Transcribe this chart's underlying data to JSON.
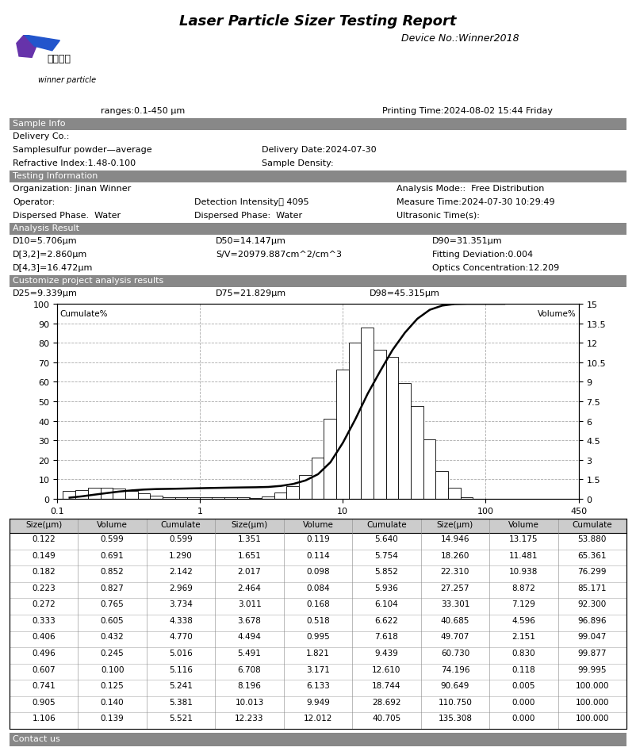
{
  "title": "Laser Particle Sizer Testing Report",
  "device": "Device No.:Winner2018",
  "ranges": "ranges:0.1-450 μm",
  "print_time": "Printing Time:2024-08-02 15:44 Friday",
  "sample_info_label": "Sample Info",
  "delivery_co": "Delivery Co.:",
  "sample": "Samplesulfur powder—average",
  "delivery_date": "Delivery Date:2024-07-30",
  "refractive": "Refractive Index:1.48-0.100",
  "sample_density": "Sample Density:",
  "testing_info_label": "Testing Information",
  "organization": "Organization: Jinan Winner",
  "operator": "Operator:",
  "dispersed1": "Dispersed Phase.  Water",
  "detection": "Detection Intensity： 4095",
  "dispersed2": "Dispersed Phase:  Water",
  "analysis_mode": "Analysis Mode::  Free Distribution",
  "measure_time": "Measure Time:2024-07-30 10:29:49",
  "ultrasonic": "Ultrasonic Time(s):",
  "analysis_result_label": "Analysis Result",
  "d10": "D10=5.706μm",
  "d50": "D50=14.147μm",
  "d90": "D90=31.351μm",
  "d32": "D[3,2]=2.860μm",
  "sv": "S/V=20979.887cm^2/cm^3",
  "fitting": "Fitting Deviation:0.004",
  "d43": "D[4,3]=16.472μm",
  "optics": "Optics Concentration:12.209",
  "customize_label": "Customize project analysis results",
  "d25": "D25=9.339μm",
  "d75": "D75=21.829μm",
  "d98": "D98=45.315μm",
  "xlabel": "Size(μm)",
  "ylabel_left": "Cumulate%",
  "ylabel_right": "Volume%",
  "bar_sizes": [
    0.122,
    0.149,
    0.182,
    0.223,
    0.272,
    0.333,
    0.406,
    0.496,
    0.607,
    0.741,
    0.905,
    1.106,
    1.351,
    1.651,
    2.017,
    2.464,
    3.011,
    3.678,
    4.494,
    5.491,
    6.708,
    8.196,
    10.013,
    12.233,
    14.946,
    18.26,
    22.31,
    27.257,
    33.301,
    40.685,
    49.707,
    60.73,
    74.196,
    90.649,
    110.75,
    135.308
  ],
  "volumes": [
    0.599,
    0.691,
    0.852,
    0.827,
    0.765,
    0.605,
    0.432,
    0.245,
    0.1,
    0.125,
    0.14,
    0.139,
    0.119,
    0.114,
    0.098,
    0.084,
    0.168,
    0.518,
    0.995,
    1.821,
    3.171,
    6.133,
    9.949,
    12.012,
    13.175,
    11.481,
    10.938,
    8.872,
    7.129,
    4.596,
    2.151,
    0.83,
    0.118,
    0.005,
    0.0,
    0.0
  ],
  "cumulates": [
    0.599,
    1.29,
    2.142,
    2.969,
    3.734,
    4.338,
    4.77,
    5.016,
    5.116,
    5.241,
    5.381,
    5.521,
    5.64,
    5.754,
    5.852,
    5.936,
    6.104,
    6.622,
    7.618,
    9.439,
    12.61,
    18.744,
    28.692,
    40.705,
    53.88,
    65.361,
    76.299,
    85.171,
    92.3,
    96.896,
    99.047,
    99.877,
    99.995,
    100.0,
    100.0,
    100.0
  ],
  "table_headers": [
    "Size(μm)",
    "Volume",
    "Cumulate",
    "Size(μm)",
    "Volume",
    "Cumulate",
    "Size(μm)",
    "Volume",
    "Cumulate"
  ],
  "table_col1": [
    [
      "0.122",
      "0.599",
      "0.599"
    ],
    [
      "0.149",
      "0.691",
      "1.290"
    ],
    [
      "0.182",
      "0.852",
      "2.142"
    ],
    [
      "0.223",
      "0.827",
      "2.969"
    ],
    [
      "0.272",
      "0.765",
      "3.734"
    ],
    [
      "0.333",
      "0.605",
      "4.338"
    ],
    [
      "0.406",
      "0.432",
      "4.770"
    ],
    [
      "0.496",
      "0.245",
      "5.016"
    ],
    [
      "0.607",
      "0.100",
      "5.116"
    ],
    [
      "0.741",
      "0.125",
      "5.241"
    ],
    [
      "0.905",
      "0.140",
      "5.381"
    ],
    [
      "1.106",
      "0.139",
      "5.521"
    ]
  ],
  "table_col2": [
    [
      "1.351",
      "0.119",
      "5.640"
    ],
    [
      "1.651",
      "0.114",
      "5.754"
    ],
    [
      "2.017",
      "0.098",
      "5.852"
    ],
    [
      "2.464",
      "0.084",
      "5.936"
    ],
    [
      "3.011",
      "0.168",
      "6.104"
    ],
    [
      "3.678",
      "0.518",
      "6.622"
    ],
    [
      "4.494",
      "0.995",
      "7.618"
    ],
    [
      "5.491",
      "1.821",
      "9.439"
    ],
    [
      "6.708",
      "3.171",
      "12.610"
    ],
    [
      "8.196",
      "6.133",
      "18.744"
    ],
    [
      "10.013",
      "9.949",
      "28.692"
    ],
    [
      "12.233",
      "12.012",
      "40.705"
    ]
  ],
  "table_col3": [
    [
      "14.946",
      "13.175",
      "53.880"
    ],
    [
      "18.260",
      "11.481",
      "65.361"
    ],
    [
      "22.310",
      "10.938",
      "76.299"
    ],
    [
      "27.257",
      "8.872",
      "85.171"
    ],
    [
      "33.301",
      "7.129",
      "92.300"
    ],
    [
      "40.685",
      "4.596",
      "96.896"
    ],
    [
      "49.707",
      "2.151",
      "99.047"
    ],
    [
      "60.730",
      "0.830",
      "99.877"
    ],
    [
      "74.196",
      "0.118",
      "99.995"
    ],
    [
      "90.649",
      "0.005",
      "100.000"
    ],
    [
      "110.750",
      "0.000",
      "100.000"
    ],
    [
      "135.308",
      "0.000",
      "100.000"
    ]
  ],
  "contact_label": "Contact us",
  "header_bg": "#888888",
  "grid_color": "#aaaaaa",
  "bar_color": "white",
  "bar_edge_color": "black"
}
